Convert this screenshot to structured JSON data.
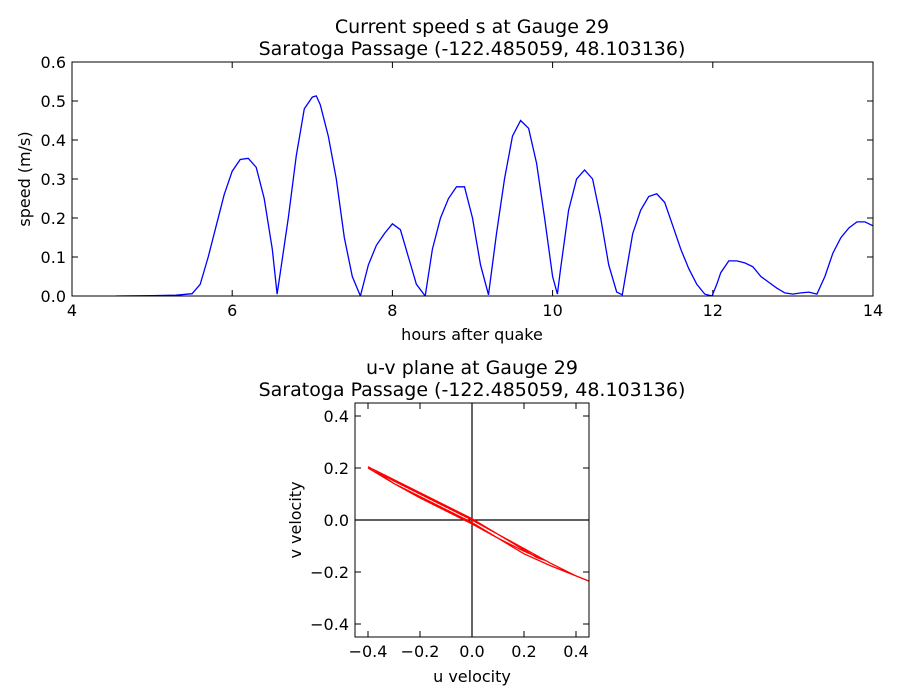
{
  "chart_data": [
    {
      "type": "line",
      "title": "Current speed s at Gauge 29",
      "subtitle": "Saratoga Passage  (-122.485059, 48.103136)",
      "xlabel": "hours after quake",
      "ylabel": "speed (m/s)",
      "xlim": [
        4,
        14
      ],
      "ylim": [
        0,
        0.6
      ],
      "xticks": [
        "4",
        "6",
        "8",
        "10",
        "12",
        "14"
      ],
      "yticks": [
        "0.0",
        "0.1",
        "0.2",
        "0.3",
        "0.4",
        "0.5",
        "0.6"
      ],
      "xtick_values": [
        4,
        6,
        8,
        10,
        12,
        14
      ],
      "ytick_values": [
        0,
        0.1,
        0.2,
        0.3,
        0.4,
        0.5,
        0.6
      ],
      "grid": false,
      "series": [
        {
          "color": "#0000ff",
          "x": [
            4.55,
            5.0,
            5.3,
            5.5,
            5.6,
            5.7,
            5.8,
            5.9,
            6.0,
            6.1,
            6.2,
            6.3,
            6.4,
            6.5,
            6.56,
            6.6,
            6.7,
            6.8,
            6.9,
            7.0,
            7.05,
            7.1,
            7.2,
            7.3,
            7.4,
            7.5,
            7.6,
            7.7,
            7.8,
            7.9,
            8.0,
            8.1,
            8.2,
            8.3,
            8.41,
            8.5,
            8.6,
            8.7,
            8.8,
            8.9,
            9.0,
            9.1,
            9.2,
            9.3,
            9.4,
            9.5,
            9.6,
            9.7,
            9.8,
            9.9,
            10.0,
            10.06,
            10.1,
            10.2,
            10.3,
            10.4,
            10.5,
            10.6,
            10.7,
            10.8,
            10.87,
            10.95,
            11.0,
            11.1,
            11.2,
            11.3,
            11.4,
            11.5,
            11.6,
            11.7,
            11.8,
            11.9,
            11.99,
            12.05,
            12.1,
            12.2,
            12.3,
            12.4,
            12.5,
            12.6,
            12.7,
            12.8,
            12.9,
            13.0,
            13.1,
            13.2,
            13.3,
            13.4,
            13.5,
            13.6,
            13.7,
            13.8,
            13.9,
            14.0
          ],
          "y": [
            0.0,
            0.001,
            0.002,
            0.006,
            0.03,
            0.1,
            0.18,
            0.26,
            0.32,
            0.35,
            0.353,
            0.33,
            0.25,
            0.12,
            0.005,
            0.06,
            0.2,
            0.36,
            0.48,
            0.51,
            0.513,
            0.49,
            0.41,
            0.3,
            0.15,
            0.05,
            0.0,
            0.08,
            0.13,
            0.16,
            0.185,
            0.17,
            0.1,
            0.03,
            0.0,
            0.12,
            0.2,
            0.25,
            0.28,
            0.28,
            0.2,
            0.08,
            0.003,
            0.16,
            0.3,
            0.41,
            0.45,
            0.43,
            0.34,
            0.2,
            0.05,
            0.005,
            0.07,
            0.22,
            0.3,
            0.323,
            0.3,
            0.2,
            0.08,
            0.01,
            0.003,
            0.1,
            0.16,
            0.22,
            0.255,
            0.262,
            0.24,
            0.18,
            0.12,
            0.07,
            0.03,
            0.005,
            0.0,
            0.03,
            0.06,
            0.09,
            0.09,
            0.085,
            0.075,
            0.05,
            0.035,
            0.02,
            0.008,
            0.005,
            0.008,
            0.01,
            0.005,
            0.05,
            0.11,
            0.15,
            0.175,
            0.19,
            0.19,
            0.18
          ]
        }
      ]
    },
    {
      "type": "line",
      "title": "u-v plane at Gauge 29",
      "subtitle": "Saratoga Passage  (-122.485059, 48.103136)",
      "xlabel": "u velocity",
      "ylabel": "v velocity",
      "xlim": [
        -0.45,
        0.45
      ],
      "ylim": [
        -0.45,
        0.45
      ],
      "xticks": [
        "−0.4",
        "−0.2",
        "0.0",
        "0.2",
        "0.4"
      ],
      "yticks": [
        "−0.4",
        "−0.2",
        "0.0",
        "0.2",
        "0.4"
      ],
      "xtick_values": [
        -0.4,
        -0.2,
        0,
        0.2,
        0.4
      ],
      "ytick_values": [
        -0.4,
        -0.2,
        0,
        0.2,
        0.4
      ],
      "grid": false,
      "reference_lines": [
        "u = 0",
        "v = 0"
      ],
      "series": [
        {
          "color": "#ff0000",
          "x": [
            -0.4,
            -0.3,
            -0.2,
            -0.1,
            0.0,
            0.1,
            0.2,
            0.3,
            0.4,
            0.45,
            0.3,
            0.2,
            0.1,
            0.0,
            -0.1,
            -0.2,
            -0.3,
            -0.38,
            -0.25,
            -0.1,
            0.0,
            0.05,
            0.1,
            0.15,
            0.2,
            0.25,
            0.28,
            0.2,
            0.1,
            0.0,
            -0.1,
            -0.2,
            -0.3,
            -0.4
          ],
          "y": [
            0.205,
            0.15,
            0.1,
            0.05,
            0.0,
            -0.055,
            -0.11,
            -0.165,
            -0.215,
            -0.235,
            -0.175,
            -0.13,
            -0.07,
            -0.01,
            0.04,
            0.09,
            0.14,
            0.195,
            0.13,
            0.055,
            0.005,
            -0.025,
            -0.055,
            -0.085,
            -0.115,
            -0.145,
            -0.155,
            -0.12,
            -0.07,
            -0.015,
            0.035,
            0.085,
            0.14,
            0.2
          ]
        }
      ]
    }
  ]
}
